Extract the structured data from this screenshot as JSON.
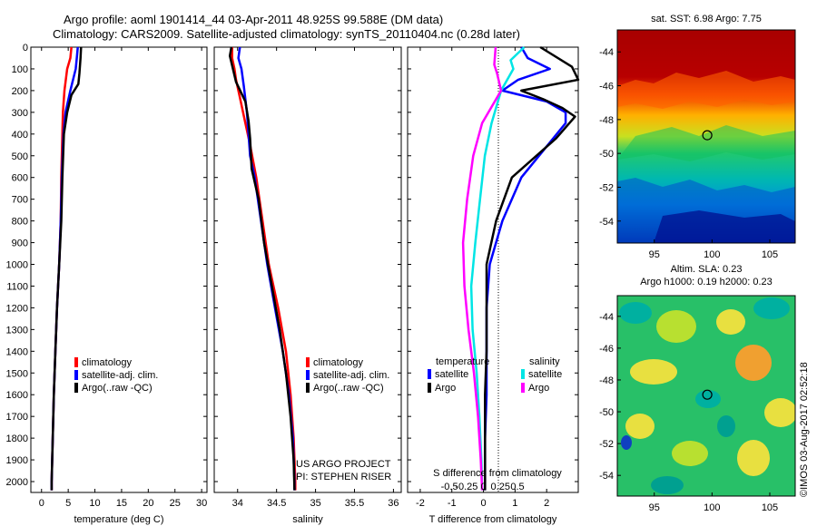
{
  "header": {
    "line1": "Argo profile: aoml 1901414_44 03-Apr-2011 48.925S 99.588E (DM data)",
    "line2": "Climatology: CARS2009. Satellite-adjusted climatology: synTS_20110404.nc (0.28d later)"
  },
  "side_label": "©IMOS 03-Aug-2017 02:52:18",
  "project_credit": {
    "line1": "US ARGO PROJECT",
    "line2": "PI: STEPHEN RISER"
  },
  "colors": {
    "climatology": "#ff0000",
    "satellite": "#0000ff",
    "argo": "#000000",
    "sal_satellite": "#00e5e5",
    "sal_argo": "#ff00ff"
  },
  "chart_data": [
    {
      "type": "line",
      "panel": "temperature",
      "xlabel": "temperature (deg C)",
      "ylabel": "",
      "xlim": [
        -2,
        31
      ],
      "ylim": [
        2050,
        0
      ],
      "xticks": [
        "0",
        "5",
        "10",
        "15",
        "20",
        "25",
        "30"
      ],
      "yticks": [
        "0",
        "100",
        "200",
        "300",
        "400",
        "500",
        "600",
        "700",
        "800",
        "900",
        "1000",
        "1100",
        "1200",
        "1300",
        "1400",
        "1500",
        "1600",
        "1700",
        "1800",
        "1900",
        "2000"
      ],
      "legend": [
        "climatology",
        "satellite-adj. clim.",
        "Argo(..raw -QC)"
      ],
      "series": [
        {
          "name": "climatology",
          "color": "#ff0000",
          "points": [
            [
              5.6,
              0
            ],
            [
              5.4,
              50
            ],
            [
              4.8,
              100
            ],
            [
              4.3,
              200
            ],
            [
              4.0,
              300
            ],
            [
              3.9,
              400
            ],
            [
              3.7,
              600
            ],
            [
              3.6,
              800
            ],
            [
              3.3,
              1000
            ],
            [
              2.9,
              1200
            ],
            [
              2.6,
              1400
            ],
            [
              2.3,
              1600
            ],
            [
              2.1,
              1800
            ],
            [
              1.9,
              2000
            ],
            [
              1.9,
              2040
            ]
          ]
        },
        {
          "name": "satellite-adj. clim.",
          "color": "#0000ff",
          "points": [
            [
              6.8,
              0
            ],
            [
              6.6,
              50
            ],
            [
              6.4,
              100
            ],
            [
              5.4,
              200
            ],
            [
              4.5,
              300
            ],
            [
              4.1,
              400
            ],
            [
              3.8,
              600
            ],
            [
              3.6,
              800
            ],
            [
              3.3,
              1000
            ],
            [
              2.9,
              1200
            ],
            [
              2.6,
              1400
            ],
            [
              2.3,
              1600
            ],
            [
              2.1,
              1800
            ],
            [
              1.9,
              2000
            ],
            [
              1.9,
              2040
            ]
          ]
        },
        {
          "name": "Argo(..raw -QC)",
          "color": "#000000",
          "points": [
            [
              7.4,
              0
            ],
            [
              7.3,
              50
            ],
            [
              7.1,
              120
            ],
            [
              6.9,
              170
            ],
            [
              5.6,
              220
            ],
            [
              4.8,
              300
            ],
            [
              4.2,
              400
            ],
            [
              3.9,
              600
            ],
            [
              3.7,
              800
            ],
            [
              3.3,
              1000
            ],
            [
              2.9,
              1200
            ],
            [
              2.6,
              1400
            ],
            [
              2.3,
              1600
            ],
            [
              2.1,
              1800
            ],
            [
              1.9,
              2000
            ],
            [
              1.9,
              2040
            ]
          ]
        }
      ]
    },
    {
      "type": "line",
      "panel": "salinity",
      "xlabel": "salinity",
      "ylabel": "",
      "xlim": [
        33.7,
        36.1
      ],
      "ylim": [
        2050,
        0
      ],
      "xticks": [
        "34",
        "34.5",
        "35",
        "35.5",
        "36"
      ],
      "legend": [
        "climatology",
        "satellite-adj. clim.",
        "Argo(..raw -QC)"
      ],
      "series": [
        {
          "name": "climatology",
          "color": "#ff0000",
          "points": [
            [
              33.93,
              0
            ],
            [
              33.93,
              50
            ],
            [
              33.96,
              100
            ],
            [
              33.98,
              150
            ],
            [
              34.04,
              250
            ],
            [
              34.1,
              350
            ],
            [
              34.16,
              450
            ],
            [
              34.24,
              600
            ],
            [
              34.32,
              800
            ],
            [
              34.4,
              1000
            ],
            [
              34.52,
              1200
            ],
            [
              34.62,
              1400
            ],
            [
              34.68,
              1600
            ],
            [
              34.72,
              1800
            ],
            [
              34.74,
              2000
            ],
            [
              34.74,
              2040
            ]
          ]
        },
        {
          "name": "satellite-adj. clim.",
          "color": "#0000ff",
          "points": [
            [
              34.03,
              0
            ],
            [
              34.01,
              50
            ],
            [
              34.05,
              100
            ],
            [
              34.08,
              180
            ],
            [
              34.12,
              300
            ],
            [
              34.14,
              400
            ],
            [
              34.16,
              500
            ],
            [
              34.22,
              600
            ],
            [
              34.3,
              800
            ],
            [
              34.38,
              1000
            ],
            [
              34.48,
              1200
            ],
            [
              34.58,
              1400
            ],
            [
              34.66,
              1600
            ],
            [
              34.71,
              1800
            ],
            [
              34.73,
              2000
            ],
            [
              34.73,
              2040
            ]
          ]
        },
        {
          "name": "Argo(..raw -QC)",
          "color": "#000000",
          "points": [
            [
              33.92,
              0
            ],
            [
              33.9,
              40
            ],
            [
              33.94,
              100
            ],
            [
              33.98,
              160
            ],
            [
              34.1,
              250
            ],
            [
              34.14,
              340
            ],
            [
              34.16,
              420
            ],
            [
              34.18,
              560
            ],
            [
              34.27,
              700
            ],
            [
              34.34,
              900
            ],
            [
              34.44,
              1100
            ],
            [
              34.54,
              1300
            ],
            [
              34.62,
              1500
            ],
            [
              34.68,
              1700
            ],
            [
              34.72,
              1900
            ],
            [
              34.73,
              2040
            ]
          ]
        }
      ]
    },
    {
      "type": "line",
      "panel": "difference",
      "xlabel": "T difference from climatology",
      "x2label": "S difference from climatology",
      "xlim": [
        -2.4,
        3.0
      ],
      "ylim": [
        2050,
        0
      ],
      "xticks": [
        "-2",
        "-1",
        "0",
        "1",
        "2"
      ],
      "x2ticks": [
        "-0.5",
        "-0.25",
        "0",
        "0.25",
        "0.5"
      ],
      "legend_headers": [
        "temperature",
        "salinity"
      ],
      "legend": [
        "satellite",
        "Argo",
        "satellite",
        "Argo"
      ],
      "series": [
        {
          "name": "satellite",
          "group": "temperature",
          "color": "#0000ff",
          "points": [
            [
              1.2,
              0
            ],
            [
              1.4,
              50
            ],
            [
              2.1,
              100
            ],
            [
              1.1,
              150
            ],
            [
              0.6,
              200
            ],
            [
              2.0,
              250
            ],
            [
              2.6,
              300
            ],
            [
              2.6,
              350
            ],
            [
              1.2,
              600
            ],
            [
              0.6,
              800
            ],
            [
              0.2,
              1000
            ],
            [
              0.1,
              1200
            ],
            [
              0.1,
              1400
            ],
            [
              0.1,
              1600
            ],
            [
              0.05,
              1800
            ],
            [
              0.05,
              2000
            ],
            [
              0.05,
              2040
            ]
          ]
        },
        {
          "name": "Argo",
          "group": "temperature",
          "color": "#000000",
          "points": [
            [
              1.8,
              0
            ],
            [
              2.8,
              90
            ],
            [
              3.0,
              150
            ],
            [
              1.2,
              200
            ],
            [
              1.9,
              240
            ],
            [
              2.5,
              280
            ],
            [
              2.9,
              320
            ],
            [
              2.3,
              420
            ],
            [
              0.9,
              600
            ],
            [
              0.4,
              800
            ],
            [
              0.1,
              1000
            ],
            [
              0.1,
              1200
            ],
            [
              0.1,
              1400
            ],
            [
              0.05,
              1600
            ],
            [
              0.05,
              1800
            ],
            [
              0.05,
              2000
            ],
            [
              0.05,
              2040
            ]
          ]
        },
        {
          "name": "satellite",
          "group": "salinity",
          "color": "#00e5e5",
          "points": [
            [
              0.6,
              0
            ],
            [
              0.4,
              60
            ],
            [
              0.44,
              100
            ],
            [
              0.26,
              200
            ],
            [
              0.12,
              350
            ],
            [
              0.02,
              500
            ],
            [
              -0.05,
              700
            ],
            [
              -0.12,
              900
            ],
            [
              -0.18,
              1100
            ],
            [
              -0.16,
              1300
            ],
            [
              -0.1,
              1500
            ],
            [
              -0.06,
              1700
            ],
            [
              -0.03,
              1900
            ],
            [
              -0.02,
              2040
            ]
          ]
        },
        {
          "name": "Argo",
          "group": "salinity",
          "color": "#ff00ff",
          "points": [
            [
              0.18,
              0
            ],
            [
              0.16,
              80
            ],
            [
              0.2,
              120
            ],
            [
              0.26,
              200
            ],
            [
              -0.02,
              350
            ],
            [
              -0.15,
              500
            ],
            [
              -0.24,
              700
            ],
            [
              -0.3,
              900
            ],
            [
              -0.28,
              1100
            ],
            [
              -0.22,
              1300
            ],
            [
              -0.14,
              1500
            ],
            [
              -0.08,
              1700
            ],
            [
              -0.04,
              1900
            ],
            [
              -0.02,
              2040
            ]
          ]
        }
      ]
    },
    {
      "type": "heatmap",
      "panel": "sst_map",
      "title": "sat. SST: 6.98  Argo: 7.75",
      "xticks": [
        "95",
        "100",
        "105"
      ],
      "yticks": [
        "-44",
        "-46",
        "-48",
        "-50",
        "-52",
        "-54"
      ],
      "xlim": [
        91.8,
        107.2
      ],
      "ylim": [
        -55.3,
        -42.7
      ],
      "marker": {
        "lon": 99.588,
        "lat": -48.925
      }
    },
    {
      "type": "heatmap",
      "panel": "sla_map",
      "title": "Altim. SLA: 0.23",
      "subtitle": "Argo h1000: 0.19 h2000: 0.23",
      "xticks": [
        "95",
        "100",
        "105"
      ],
      "yticks": [
        "-44",
        "-46",
        "-48",
        "-50",
        "-52",
        "-54"
      ],
      "xlim": [
        91.8,
        107.2
      ],
      "ylim": [
        -55.3,
        -42.7
      ],
      "marker": {
        "lon": 99.588,
        "lat": -48.925
      }
    }
  ]
}
